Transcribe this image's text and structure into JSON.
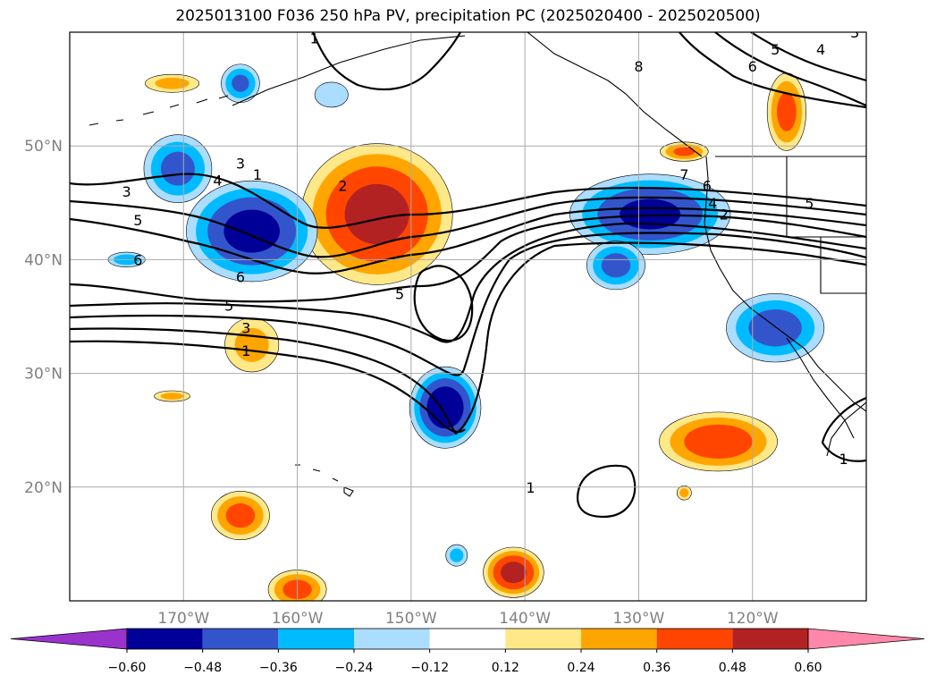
{
  "title": "2025013100 F036 250 hPa PV, precipitation PC (2025020400 - 2025020500)",
  "chart_data": {
    "type": "heatmap",
    "projection": "lat-lon",
    "lon_range": [
      -180,
      -110
    ],
    "lat_range": [
      10,
      60
    ],
    "gridlines": true,
    "lon_ticks": [
      {
        "value": -170,
        "label": "170°W"
      },
      {
        "value": -160,
        "label": "160°W"
      },
      {
        "value": -150,
        "label": "150°W"
      },
      {
        "value": -140,
        "label": "140°W"
      },
      {
        "value": -130,
        "label": "130°W"
      },
      {
        "value": -120,
        "label": "120°W"
      }
    ],
    "lat_ticks": [
      {
        "value": 50,
        "label": "50°N"
      },
      {
        "value": 40,
        "label": "40°N"
      },
      {
        "value": 30,
        "label": "30°N"
      },
      {
        "value": 20,
        "label": "20°N"
      }
    ],
    "colorbar": {
      "ticks": [
        {
          "value": -0.6,
          "label": "−0.60"
        },
        {
          "value": -0.48,
          "label": "−0.48"
        },
        {
          "value": -0.36,
          "label": "−0.36"
        },
        {
          "value": -0.24,
          "label": "−0.24"
        },
        {
          "value": -0.12,
          "label": "−0.12"
        },
        {
          "value": 0.12,
          "label": "0.12"
        },
        {
          "value": 0.24,
          "label": "0.24"
        },
        {
          "value": 0.36,
          "label": "0.36"
        },
        {
          "value": 0.48,
          "label": "0.48"
        },
        {
          "value": 0.6,
          "label": "0.60"
        }
      ],
      "colors": [
        "#9933cc",
        "#000099",
        "#3355cc",
        "#00bbff",
        "#aaddff",
        "#ffffff",
        "#ffe888",
        "#ffa500",
        "#ff4500",
        "#b22222",
        "#ff88aa"
      ],
      "extend": "both"
    },
    "precip_anomalies": [
      {
        "lon": -153,
        "lat": 44,
        "rx": 7.5,
        "ry": 7,
        "value": 0.5
      },
      {
        "lon": -164,
        "lat": 42.5,
        "rx": 6.5,
        "ry": 5,
        "value": -0.5
      },
      {
        "lon": -170.5,
        "lat": 48,
        "rx": 3.5,
        "ry": 3.5,
        "value": -0.38
      },
      {
        "lon": -129,
        "lat": 44,
        "rx": 8,
        "ry": 4,
        "value": -0.48
      },
      {
        "lon": -118,
        "lat": 34,
        "rx": 5,
        "ry": 3.5,
        "value": -0.4
      },
      {
        "lon": -147,
        "lat": 27,
        "rx": 3.5,
        "ry": 4,
        "value": -0.55
      },
      {
        "lon": -123,
        "lat": 24,
        "rx": 6,
        "ry": 3,
        "value": 0.42
      },
      {
        "lon": -165,
        "lat": 17.5,
        "rx": 3,
        "ry": 2.5,
        "value": 0.38
      },
      {
        "lon": -141,
        "lat": 12.5,
        "rx": 3,
        "ry": 2.5,
        "value": 0.5
      },
      {
        "lon": -160,
        "lat": 11,
        "rx": 3,
        "ry": 2,
        "value": 0.38
      },
      {
        "lon": -164,
        "lat": 32.5,
        "rx": 3,
        "ry": 3,
        "value": 0.26
      },
      {
        "lon": -117,
        "lat": 53,
        "rx": 2,
        "ry": 4,
        "value": 0.38
      },
      {
        "lon": -132,
        "lat": 39.5,
        "rx": 3,
        "ry": 2.5,
        "value": -0.38
      },
      {
        "lon": -165,
        "lat": 55.5,
        "rx": 2,
        "ry": 2,
        "value": -0.36
      },
      {
        "lon": -157,
        "lat": 54.5,
        "rx": 2,
        "ry": 1.5,
        "value": -0.2
      },
      {
        "lon": -171,
        "lat": 55.5,
        "rx": 3,
        "ry": 1,
        "value": 0.26
      },
      {
        "lon": -126,
        "lat": 49.5,
        "rx": 2.5,
        "ry": 1,
        "value": 0.36
      },
      {
        "lon": -175,
        "lat": 40,
        "rx": 2,
        "ry": 0.8,
        "value": -0.3
      },
      {
        "lon": -146,
        "lat": 14,
        "rx": 1.2,
        "ry": 1.2,
        "value": -0.26
      },
      {
        "lon": -126,
        "lat": 19.5,
        "rx": 0.8,
        "ry": 0.8,
        "value": 0.26
      },
      {
        "lon": -171,
        "lat": 28,
        "rx": 2,
        "ry": 0.6,
        "value": 0.26
      }
    ],
    "pv_contour_labels": [
      {
        "lon": -175,
        "lat": 46,
        "text": "3"
      },
      {
        "lon": -174,
        "lat": 43.5,
        "text": "5"
      },
      {
        "lon": -174,
        "lat": 40,
        "text": "6"
      },
      {
        "lon": -165,
        "lat": 48.5,
        "text": "3"
      },
      {
        "lon": -167,
        "lat": 47,
        "text": "4"
      },
      {
        "lon": -163.5,
        "lat": 47.5,
        "text": "1"
      },
      {
        "lon": -165,
        "lat": 38.5,
        "text": "6"
      },
      {
        "lon": -156,
        "lat": 46.5,
        "text": "2"
      },
      {
        "lon": -166,
        "lat": 36,
        "text": "5"
      },
      {
        "lon": -164.5,
        "lat": 34,
        "text": "3"
      },
      {
        "lon": -164.5,
        "lat": 32,
        "text": "1"
      },
      {
        "lon": -151,
        "lat": 37,
        "text": "5"
      },
      {
        "lon": -158.5,
        "lat": 59.5,
        "text": "1"
      },
      {
        "lon": -130,
        "lat": 57,
        "text": "8"
      },
      {
        "lon": -120,
        "lat": 57,
        "text": "6"
      },
      {
        "lon": -118,
        "lat": 58.5,
        "text": "5"
      },
      {
        "lon": -114,
        "lat": 58.5,
        "text": "4"
      },
      {
        "lon": -111,
        "lat": 60,
        "text": "3"
      },
      {
        "lon": -126,
        "lat": 47.5,
        "text": "7"
      },
      {
        "lon": -124,
        "lat": 46.5,
        "text": "6"
      },
      {
        "lon": -123.5,
        "lat": 45,
        "text": "4"
      },
      {
        "lon": -122.5,
        "lat": 44,
        "text": "2"
      },
      {
        "lon": -115,
        "lat": 45,
        "text": "5"
      },
      {
        "lon": -139.5,
        "lat": 20,
        "text": "1"
      },
      {
        "lon": -112,
        "lat": 22.5,
        "text": "1"
      }
    ]
  }
}
